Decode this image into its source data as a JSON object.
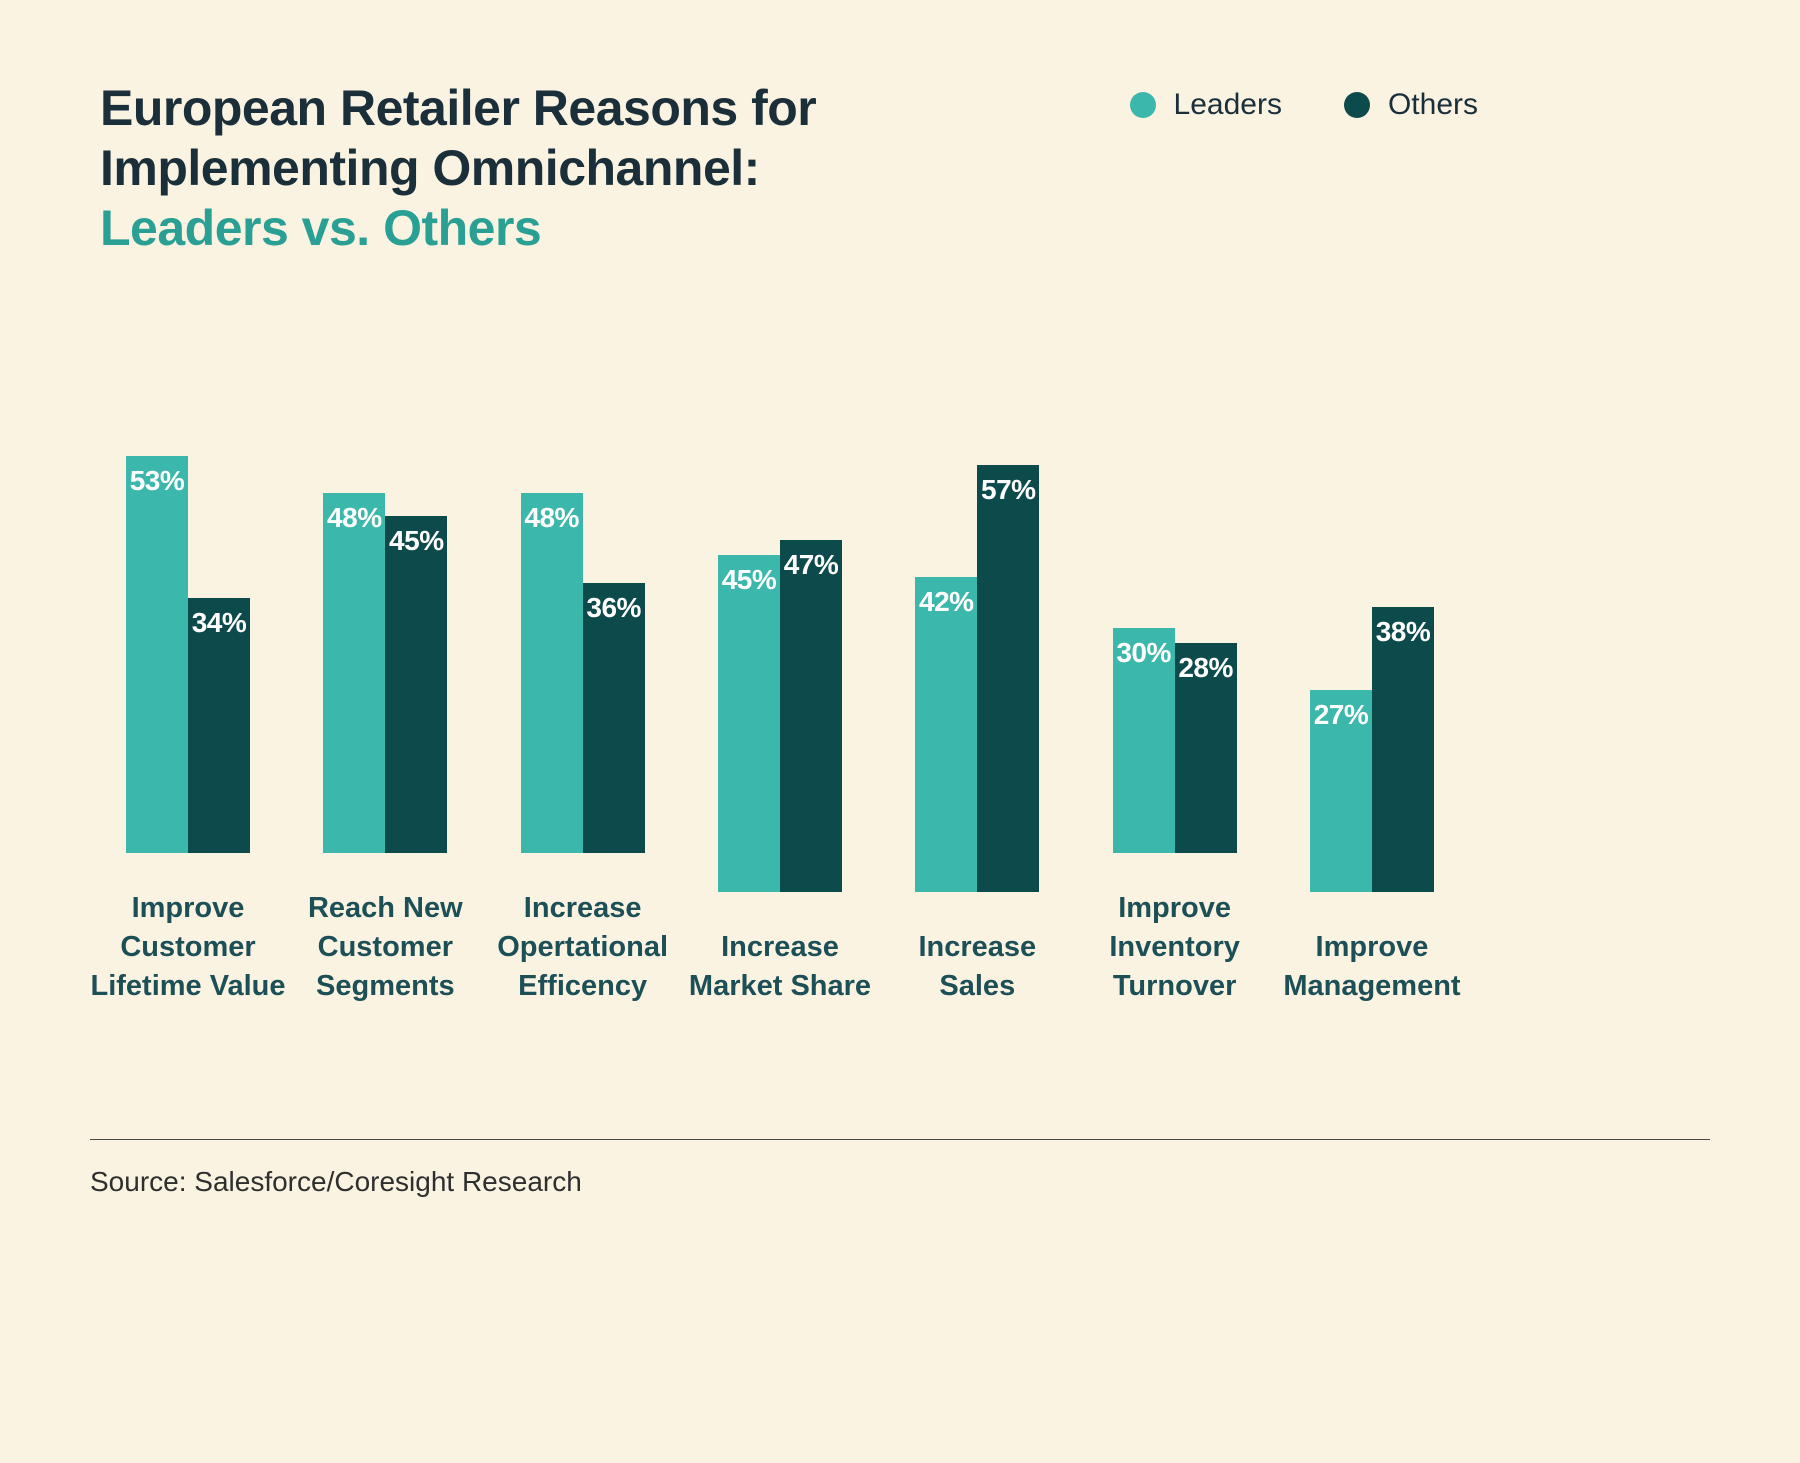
{
  "header": {
    "title_line1": "European Retailer Reasons for",
    "title_line2": "Implementing Omnichannel:",
    "title_accent": "Leaders vs. Others"
  },
  "footer": {
    "source": "Source: Salesforce/Coresight Research"
  },
  "colors": {
    "background": "#FAF3E2",
    "title": "#1A2F3A",
    "accent": "#2AA095",
    "category_label": "#1D4F57",
    "value_label": "#FFFFFF",
    "rule": "#4A4A4A",
    "source_text": "#2F2F2F"
  },
  "chart_data": {
    "type": "bar",
    "title": "European Retailer Reasons for Implementing Omnichannel: Leaders vs. Others",
    "categories": [
      "Improve\nCustomer\nLifetime Value",
      "Reach New\nCustomer\nSegments",
      "Increase\nOpertational\nEfficency",
      "Increase\nMarket Share",
      "Increase Sales",
      "Improve\nInventory\nTurnover",
      "Improve\nManagement"
    ],
    "series": [
      {
        "name": "Leaders",
        "color": "#3CB7AB",
        "values": [
          53,
          48,
          48,
          45,
          42,
          30,
          27
        ]
      },
      {
        "name": "Others",
        "color": "#0D4A4B",
        "values": [
          34,
          45,
          36,
          47,
          57,
          28,
          38
        ]
      }
    ],
    "value_suffix": "%",
    "ylim": [
      0,
      60
    ],
    "grid": false,
    "legend_position": "top-right",
    "xlabel": "",
    "ylabel": ""
  }
}
